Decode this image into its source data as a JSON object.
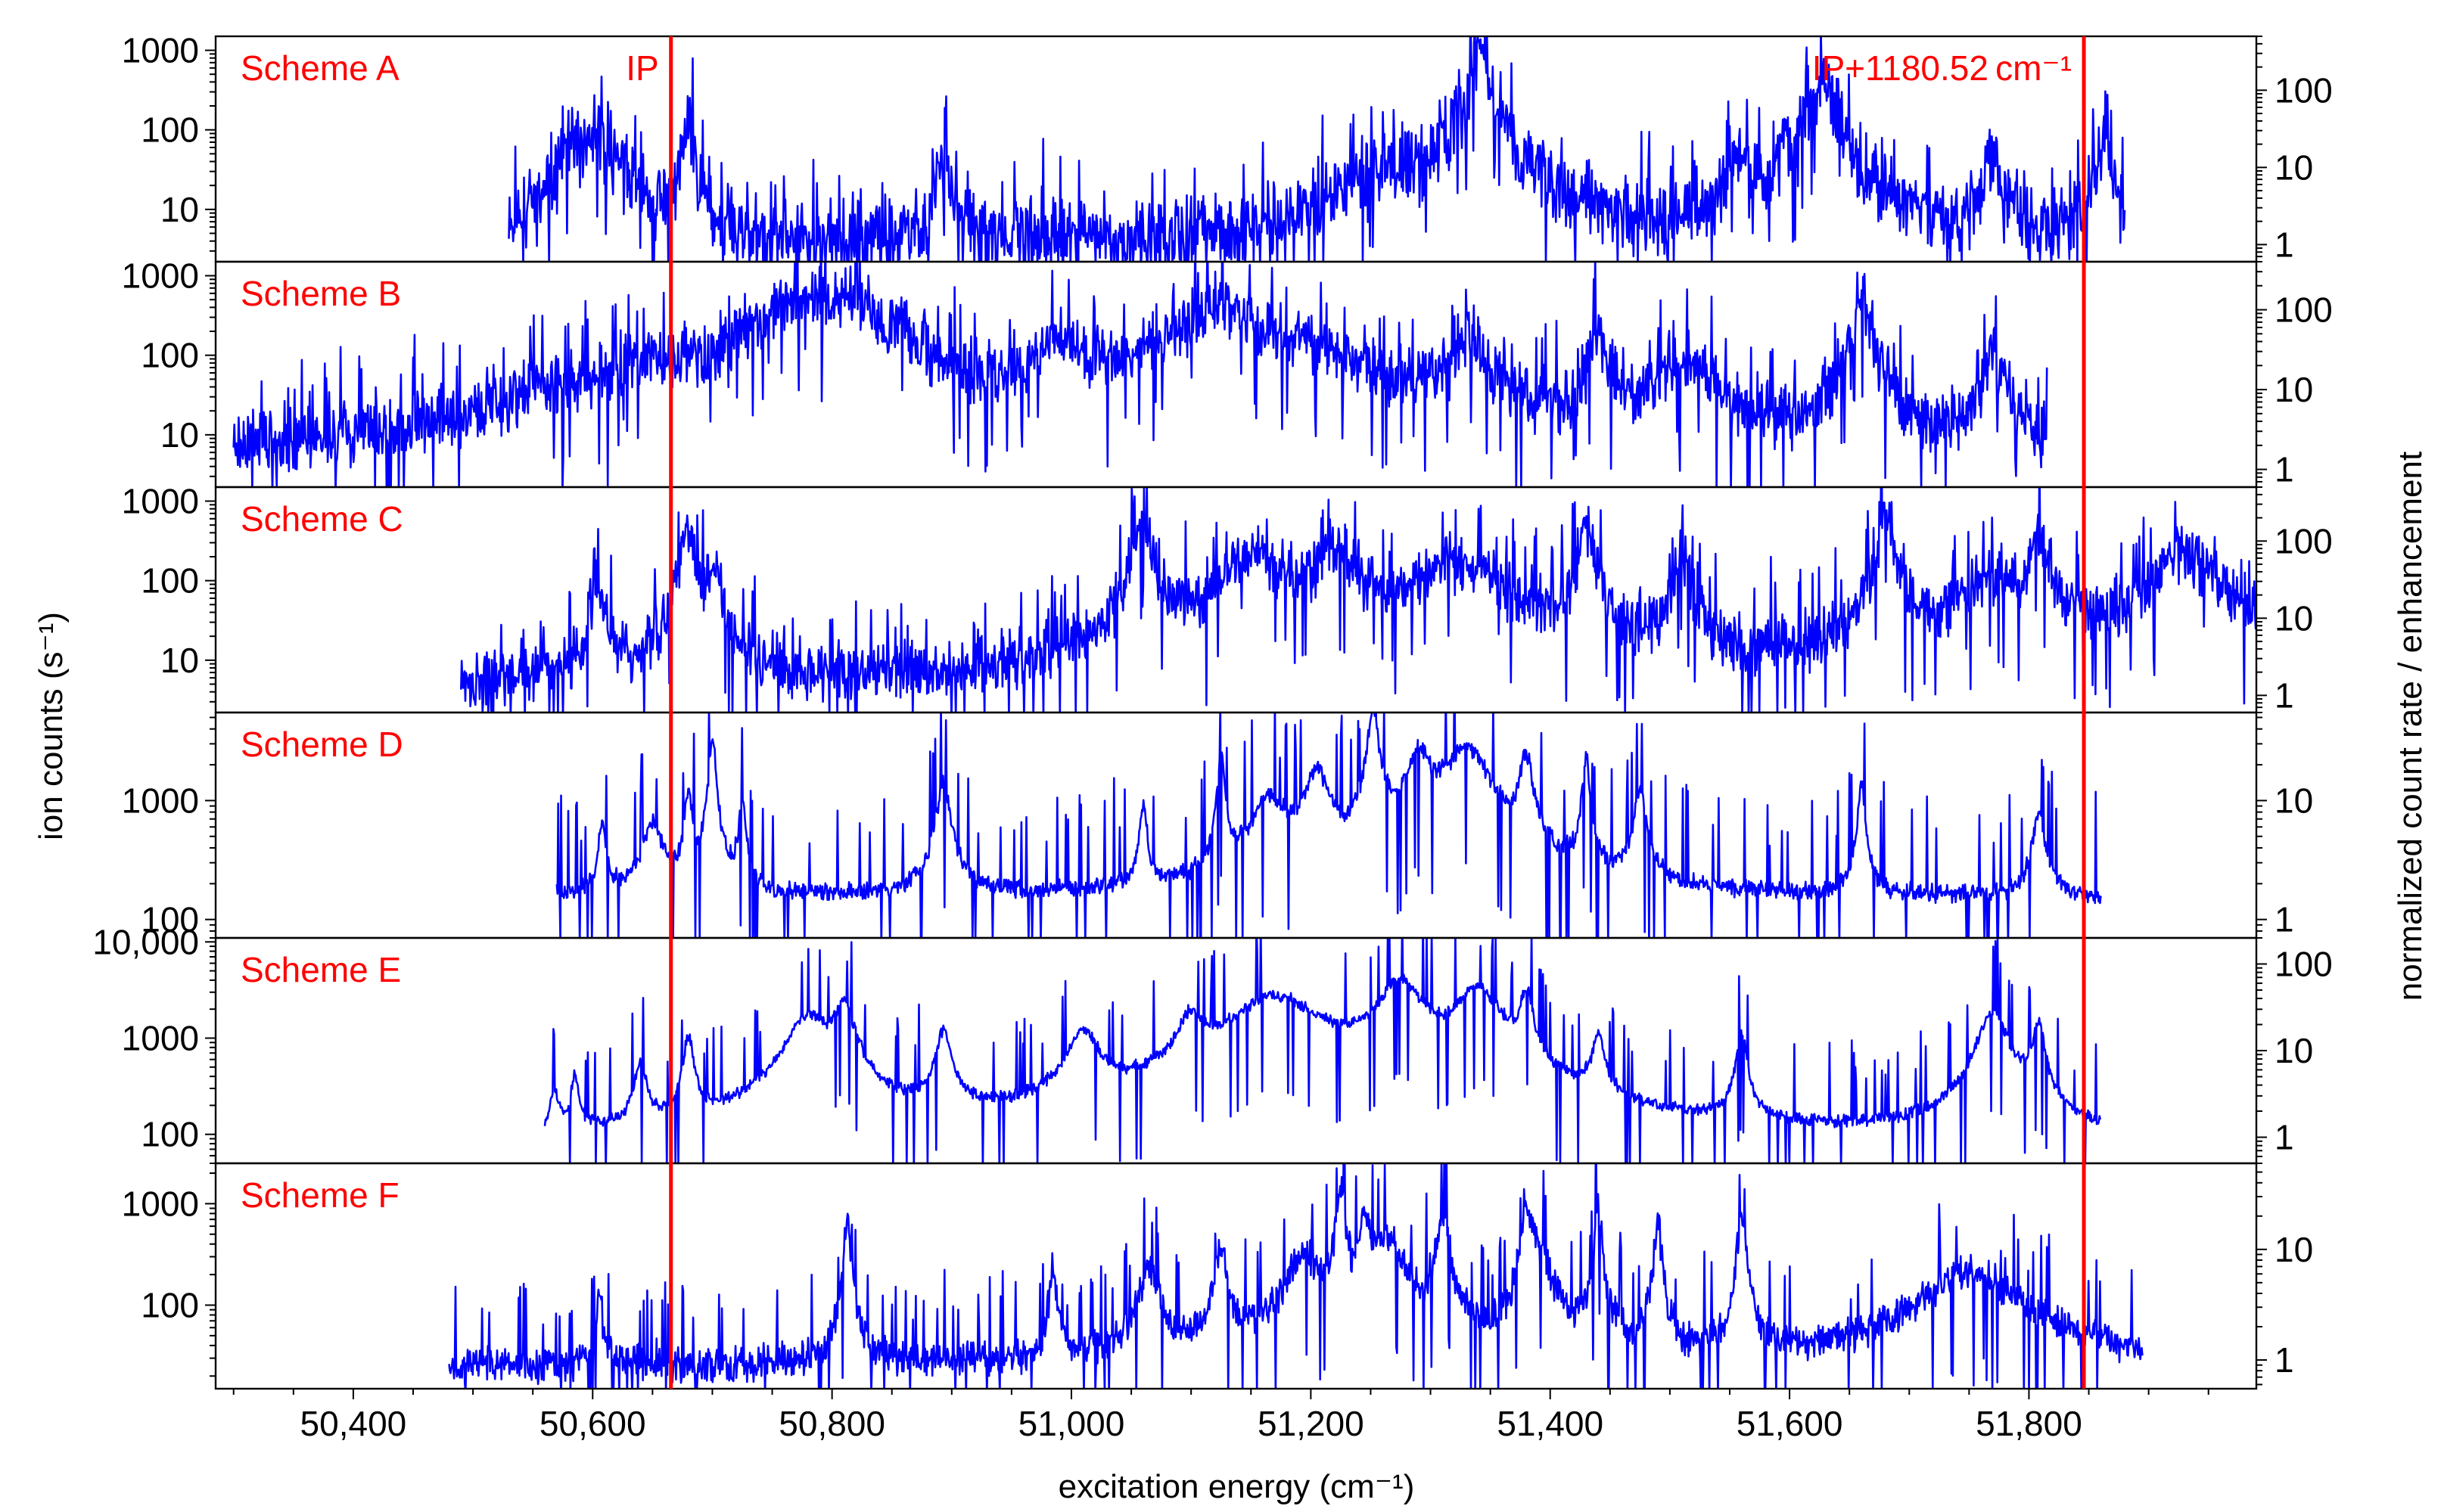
{
  "chart_data": {
    "type": "line",
    "title": "",
    "xlabel": "excitation energy (cm⁻¹)",
    "ylabel_left": "ion counts (s⁻¹)",
    "ylabel_right": "normalized count rate / enhancement",
    "xlim": [
      50285,
      51990
    ],
    "x_ticks": [
      50400,
      50600,
      50800,
      51000,
      51200,
      51400,
      51600,
      51800
    ],
    "x_tick_labels": [
      "50,400",
      "50,600",
      "50,800",
      "51,000",
      "51,200",
      "51,400",
      "51,600",
      "51,800"
    ],
    "vlines": [
      {
        "label": "IP",
        "x": 50665.4,
        "color": "#ff0000"
      },
      {
        "label": "IP+1180.52 cm⁻¹",
        "x": 51845.9,
        "color": "#ff0000"
      }
    ],
    "line_color": "#0000ff",
    "label_color": "#ff0000",
    "panels": [
      {
        "name": "Scheme A",
        "yscale": "log",
        "ylim": [
          2.2,
          1500
        ],
        "left_ticks": [
          10,
          100,
          1000
        ],
        "left_tick_labels": [
          "10",
          "100",
          "1000"
        ],
        "right_ylim": [
          0.6,
          500
        ],
        "right_ticks": [
          1,
          10,
          100
        ],
        "right_tick_labels": [
          "1",
          "10",
          "100"
        ],
        "x_range": [
          50530,
          51880
        ],
        "baseline": 3,
        "noise": 0.75,
        "seed": 11,
        "peaks": [
          [
            50578,
            60,
            4
          ],
          [
            50603,
            90,
            14
          ],
          [
            50680,
            120,
            4
          ],
          [
            50893,
            40,
            5
          ],
          [
            51262,
            25,
            30
          ],
          [
            51342,
            1500,
            6
          ],
          [
            51554,
            40,
            6
          ],
          [
            51620,
            200,
            12
          ],
          [
            51633,
            180,
            8
          ],
          [
            51770,
            50,
            6
          ],
          [
            51862,
            70,
            5
          ]
        ]
      },
      {
        "name": "Scheme B",
        "yscale": "log",
        "ylim": [
          2.2,
          1500
        ],
        "left_ticks": [
          10,
          100,
          1000
        ],
        "left_tick_labels": [
          "10",
          "100",
          "1000"
        ],
        "right_ylim": [
          0.6,
          400
        ],
        "right_ticks": [
          1,
          10,
          100
        ],
        "right_tick_labels": [
          "1",
          "10",
          "100"
        ],
        "x_range": [
          50300,
          51815
        ],
        "baseline": 2.5,
        "noise": 0.65,
        "seed": 23,
        "peaks": [
          [
            50560,
            20,
            20
          ],
          [
            50640,
            40,
            30
          ],
          [
            50775,
            500,
            40
          ],
          [
            50815,
            300,
            12
          ],
          [
            50860,
            150,
            8
          ],
          [
            50990,
            100,
            20
          ],
          [
            51060,
            60,
            30
          ],
          [
            51125,
            400,
            25
          ],
          [
            51200,
            100,
            40
          ],
          [
            51330,
            150,
            15
          ],
          [
            51440,
            200,
            6
          ],
          [
            51510,
            80,
            20
          ],
          [
            51660,
            600,
            6
          ],
          [
            51770,
            80,
            10
          ]
        ]
      },
      {
        "name": "Scheme C",
        "yscale": "log",
        "ylim": [
          2.2,
          1500
        ],
        "left_ticks": [
          10,
          100,
          1000
        ],
        "left_tick_labels": [
          "10",
          "100",
          "1000"
        ],
        "right_ylim": [
          0.6,
          500
        ],
        "right_ticks": [
          1,
          10,
          100
        ],
        "right_tick_labels": [
          "1",
          "10",
          "100"
        ],
        "x_range": [
          50490,
          51990
        ],
        "baseline": 4,
        "noise": 0.6,
        "seed": 37,
        "peaks": [
          [
            50603,
            80,
            5
          ],
          [
            50680,
            400,
            5
          ],
          [
            50700,
            150,
            5
          ],
          [
            51060,
            600,
            6
          ],
          [
            51150,
            200,
            20
          ],
          [
            51220,
            200,
            18
          ],
          [
            51320,
            150,
            35
          ],
          [
            51430,
            500,
            5
          ],
          [
            51510,
            200,
            6
          ],
          [
            51680,
            800,
            5
          ],
          [
            51770,
            100,
            25
          ],
          [
            51808,
            300,
            6
          ],
          [
            51930,
            200,
            25
          ]
        ]
      },
      {
        "name": "Scheme D",
        "yscale": "log",
        "ylim": [
          70,
          5500
        ],
        "left_ticks": [
          100,
          1000
        ],
        "left_tick_labels": [
          "100",
          "1000"
        ],
        "right_ylim": [
          0.7,
          55
        ],
        "right_ticks": [
          1,
          10
        ],
        "right_tick_labels": [
          "1",
          "10"
        ],
        "x_range": [
          50570,
          51860
        ],
        "baseline": 150,
        "noise": 0.12,
        "seed": 41,
        "peaks": [
          [
            50608,
            500,
            3
          ],
          [
            50650,
            500,
            8
          ],
          [
            50680,
            1000,
            3
          ],
          [
            50700,
            3000,
            3
          ],
          [
            50725,
            800,
            3
          ],
          [
            50893,
            1200,
            6
          ],
          [
            51060,
            700,
            3
          ],
          [
            51125,
            2000,
            3
          ],
          [
            51165,
            800,
            15
          ],
          [
            51205,
            1500,
            10
          ],
          [
            51252,
            5000,
            5
          ],
          [
            51290,
            2000,
            10
          ],
          [
            51330,
            2500,
            20
          ],
          [
            51380,
            2000,
            5
          ],
          [
            51430,
            2000,
            3
          ],
          [
            51475,
            1000,
            5
          ],
          [
            51660,
            1200,
            3
          ],
          [
            51808,
            600,
            5
          ]
        ]
      },
      {
        "name": "Scheme E",
        "yscale": "log",
        "ylim": [
          50,
          11000
        ],
        "left_ticks": [
          100,
          1000,
          10000
        ],
        "left_tick_labels": [
          "100",
          "1000",
          "10,000"
        ],
        "right_ylim": [
          0.5,
          200
        ],
        "right_ticks": [
          1,
          10,
          100
        ],
        "right_tick_labels": [
          "1",
          "10",
          "100"
        ],
        "x_range": [
          50560,
          51860
        ],
        "baseline": 80,
        "noise": 0.1,
        "seed": 53,
        "peaks": [
          [
            50568,
            200,
            3
          ],
          [
            50585,
            300,
            3
          ],
          [
            50640,
            400,
            5
          ],
          [
            50680,
            900,
            4
          ],
          [
            50780,
            1500,
            18
          ],
          [
            50810,
            2000,
            8
          ],
          [
            50893,
            1000,
            6
          ],
          [
            51010,
            1000,
            12
          ],
          [
            51100,
            1200,
            10
          ],
          [
            51170,
            2500,
            40
          ],
          [
            51275,
            3500,
            18
          ],
          [
            51340,
            3000,
            18
          ],
          [
            51380,
            2500,
            5
          ],
          [
            51440,
            800,
            5
          ],
          [
            51560,
            1000,
            4
          ],
          [
            51770,
            1800,
            12
          ],
          [
            51808,
            1200,
            5
          ]
        ]
      },
      {
        "name": "Scheme F",
        "yscale": "log",
        "ylim": [
          15,
          2500
        ],
        "left_ticks": [
          100,
          1000
        ],
        "left_tick_labels": [
          "100",
          "1000"
        ],
        "right_ylim": [
          0.55,
          60
        ],
        "right_ticks": [
          1,
          10
        ],
        "right_tick_labels": [
          "1",
          "10"
        ],
        "x_range": [
          50480,
          51895
        ],
        "baseline": 25,
        "noise": 0.28,
        "seed": 67,
        "peaks": [
          [
            50605,
            100,
            3
          ],
          [
            50813,
            600,
            3
          ],
          [
            50985,
            200,
            3
          ],
          [
            51065,
            200,
            8
          ],
          [
            51125,
            300,
            5
          ],
          [
            51195,
            250,
            15
          ],
          [
            51225,
            1300,
            3
          ],
          [
            51245,
            700,
            4
          ],
          [
            51265,
            400,
            12
          ],
          [
            51310,
            700,
            5
          ],
          [
            51380,
            1000,
            3
          ],
          [
            51390,
            300,
            10
          ],
          [
            51440,
            800,
            3
          ],
          [
            51490,
            600,
            3
          ],
          [
            51560,
            800,
            3
          ],
          [
            51750,
            180,
            40
          ]
        ]
      }
    ]
  }
}
